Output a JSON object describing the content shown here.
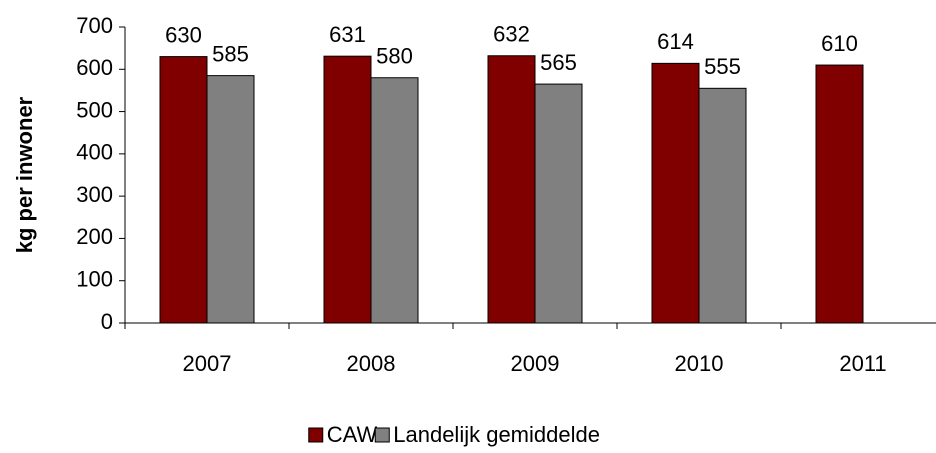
{
  "chart_data": {
    "type": "bar",
    "y_label": "kg per inwoner",
    "categories": [
      "2007",
      "2008",
      "2009",
      "2010",
      "2011"
    ],
    "series": [
      {
        "name": "CAW",
        "color": "#800000",
        "values": [
          630,
          631,
          632,
          614,
          610
        ]
      },
      {
        "name": "Landelijk gemiddelde",
        "color": "#808080",
        "values": [
          585,
          580,
          565,
          555,
          null
        ]
      }
    ],
    "ylim": [
      0,
      700
    ],
    "yticks": [
      0,
      100,
      200,
      300,
      400,
      500,
      600,
      700
    ],
    "legend": "bottom"
  }
}
